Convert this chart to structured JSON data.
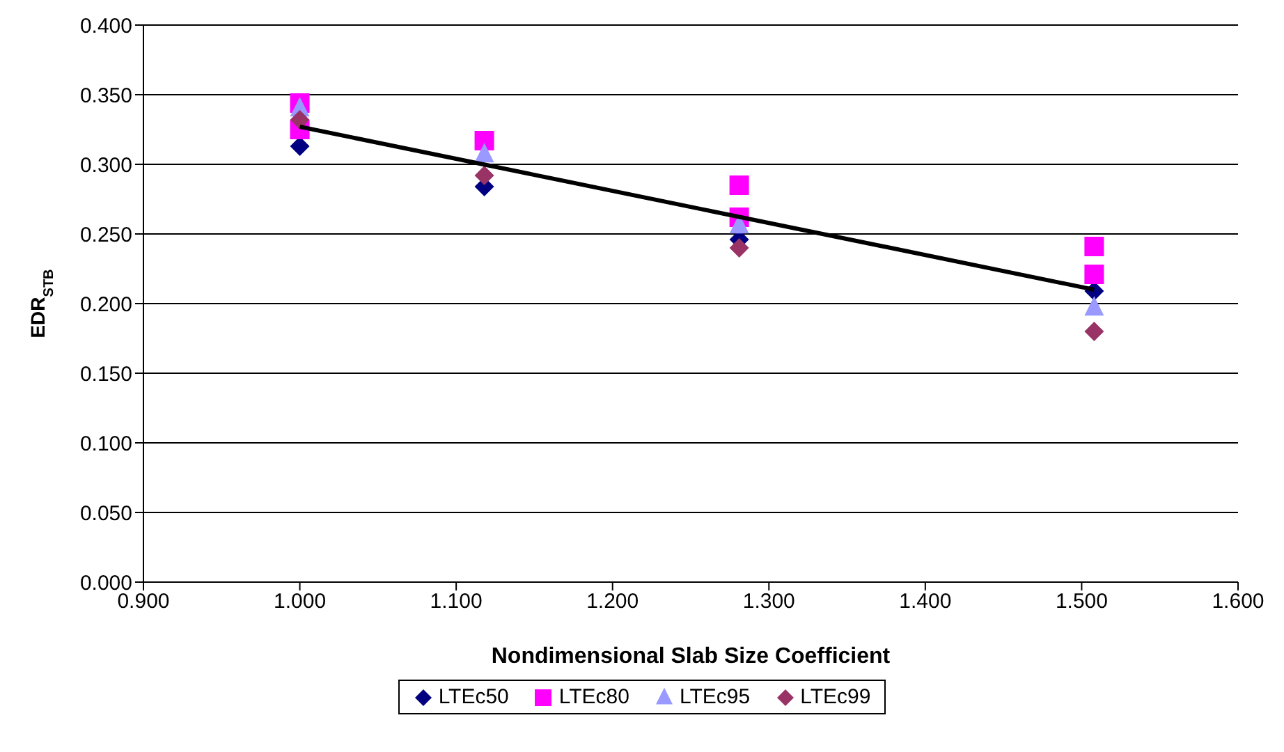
{
  "chart_data": {
    "type": "scatter",
    "xlabel": "Nondimensional Slab Size Coefficient",
    "ylabel": "EDR$_{STB}$",
    "xlim": [
      0.9,
      1.6
    ],
    "xticks": [
      {
        "value": 0.9,
        "label": "0.900"
      },
      {
        "value": 1.0,
        "label": "1.000"
      },
      {
        "value": 1.1,
        "label": "1.100"
      },
      {
        "value": 1.2,
        "label": "1.200"
      },
      {
        "value": 1.3,
        "label": "1.300"
      },
      {
        "value": 1.4,
        "label": "1.400"
      },
      {
        "value": 1.5,
        "label": "1.500"
      },
      {
        "value": 1.6,
        "label": "1.600"
      }
    ],
    "ylim": [
      0,
      0.4
    ],
    "yticks": [
      {
        "value": 0,
        "label": "0.000"
      },
      {
        "value": 0.05,
        "label": "0.050"
      },
      {
        "value": 0.1,
        "label": "0.100"
      },
      {
        "value": 0.15,
        "label": "0.150"
      },
      {
        "value": 0.2,
        "label": "0.200"
      },
      {
        "value": 0.25,
        "label": "0.250"
      },
      {
        "value": 0.3,
        "label": "0.300"
      },
      {
        "value": 0.35,
        "label": "0.350"
      },
      {
        "value": 0.4,
        "label": "0.400"
      }
    ],
    "grid": "y",
    "legend": "bottom",
    "series": [
      {
        "name": "LTEc50",
        "color": "#000080",
        "marker": "diamond",
        "x": [
          1.0,
          1.118,
          1.281,
          1.508
        ],
        "values": [
          0.313,
          0.284,
          0.246,
          0.209
        ]
      },
      {
        "name": "LTEc80",
        "color": "#ff00ff",
        "marker": "square",
        "x": [
          1.0,
          1.0,
          1.118,
          1.281,
          1.281,
          1.508,
          1.508
        ],
        "values": [
          0.344,
          0.325,
          0.317,
          0.285,
          0.262,
          0.241,
          0.221
        ]
      },
      {
        "name": "LTEc95",
        "color": "#9999ff",
        "marker": "triangle",
        "x": [
          1.0,
          1.118,
          1.281,
          1.508
        ],
        "values": [
          0.34,
          0.307,
          0.256,
          0.197
        ]
      },
      {
        "name": "LTEc99",
        "color": "#993366",
        "marker": "diamond",
        "x": [
          1.0,
          1.118,
          1.281,
          1.508
        ],
        "values": [
          0.332,
          0.292,
          0.24,
          0.18
        ]
      },
      {
        "type": "line",
        "color": "#000000",
        "marker": "none",
        "x": [
          1.0,
          1.508
        ],
        "values": [
          0.327,
          0.21
        ]
      }
    ]
  }
}
